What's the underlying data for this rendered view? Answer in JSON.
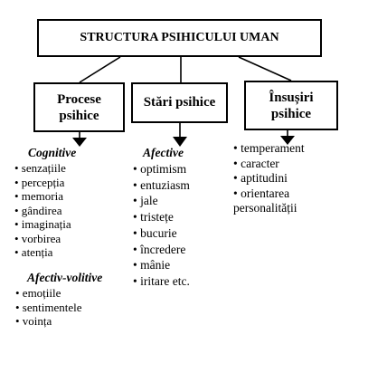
{
  "title": "STRUCTURA PSIHICULUI UMAN",
  "boxes": {
    "procese": "Procese\npsihice",
    "stari": "Stări psihice",
    "insusiri": "Însușiri\npsihice"
  },
  "procese": {
    "cognitive_heading": "Cognitive",
    "cognitive_items": [
      "• senzațiile",
      "• percepția",
      "• memoria",
      "• gândirea",
      "• imaginația",
      "• vorbirea",
      "• atenția"
    ],
    "afectiv_volitive_heading": "Afectiv-volitive",
    "afectiv_volitive_items": [
      "• emoțiile",
      "• sentimentele",
      "• voința"
    ]
  },
  "stari": {
    "heading": "Afective",
    "items": [
      "• optimism",
      "• entuziasm",
      "• jale",
      "• tristețe",
      "• bucurie",
      "• încredere",
      "• mânie",
      "• iritare etc."
    ]
  },
  "insusiri": {
    "items": [
      "• temperament",
      "• caracter",
      "• aptitudini",
      "• orientarea",
      "personalității"
    ]
  }
}
